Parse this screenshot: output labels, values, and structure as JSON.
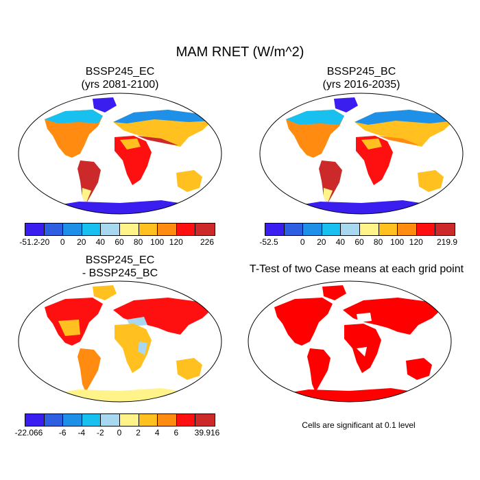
{
  "title": "MAM RNET (W/m^2)",
  "panels": [
    {
      "id": "ec",
      "title_line1": "BSSP245_EC",
      "title_line2": "(yrs 2081-2100)"
    },
    {
      "id": "bc",
      "title_line1": "BSSP245_BC",
      "title_line2": "(yrs 2016-2035)"
    },
    {
      "id": "diff",
      "title_line1": "BSSP245_EC",
      "title_line2": "- BSSP245_BC"
    },
    {
      "id": "ttest",
      "title_line1": "T-Test of two Case means at each grid point",
      "title_line2": ""
    }
  ],
  "colorbars": {
    "ec": {
      "colors": [
        "#3a1ef0",
        "#2e5fe0",
        "#1e90e8",
        "#18c0f0",
        "#a8d8f0",
        "#fff38a",
        "#ffc020",
        "#ff8c10",
        "#ff1010",
        "#cc2a2a"
      ],
      "labels": [
        "-51.2",
        "-20",
        "0",
        "20",
        "40",
        "60",
        "80",
        "100",
        "120",
        "226"
      ]
    },
    "bc": {
      "colors": [
        "#3a1ef0",
        "#2e5fe0",
        "#1e90e8",
        "#18c0f0",
        "#a8d8f0",
        "#fff38a",
        "#ffc020",
        "#ff8c10",
        "#ff1010",
        "#cc2a2a"
      ],
      "labels": [
        "-52.5",
        "0",
        "20",
        "40",
        "60",
        "80",
        "100",
        "120",
        "219.9"
      ]
    },
    "diff": {
      "colors": [
        "#3a1ef0",
        "#2e5fe0",
        "#1e90e8",
        "#18c0f0",
        "#a8d8f0",
        "#fff38a",
        "#ffc020",
        "#ff8c10",
        "#ff1010",
        "#cc2a2a"
      ],
      "labels": [
        "-22.066",
        "-6",
        "-4",
        "-2",
        "0",
        "2",
        "4",
        "6",
        "39.916"
      ]
    }
  },
  "significance_note": "Cells are significant at 0.1 level",
  "significance_color": "#ff0000"
}
